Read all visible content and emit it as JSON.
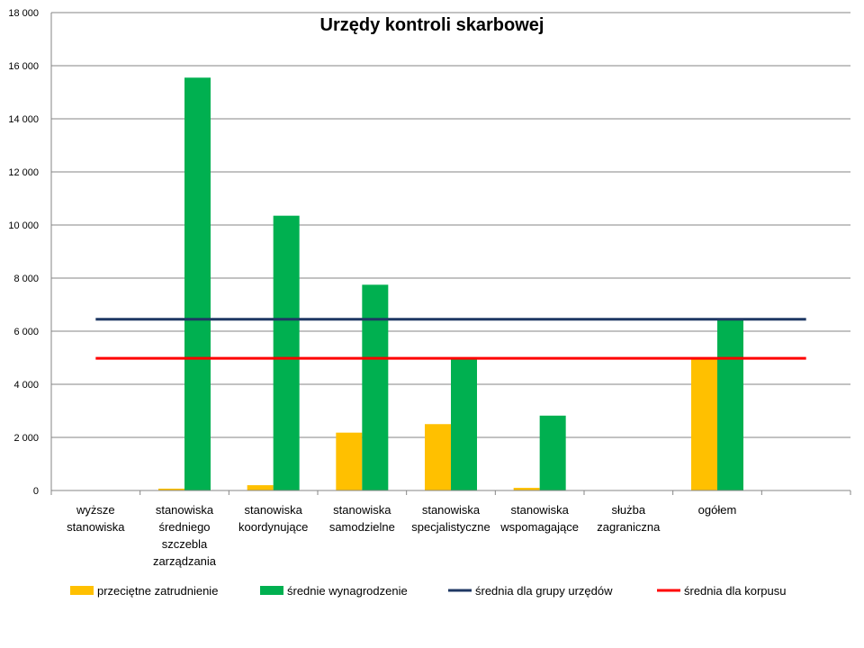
{
  "chart_data": {
    "type": "bar",
    "title": "Urzędy kontroli skarbowej",
    "xlabel": "",
    "ylabel": "",
    "ylim": [
      0,
      18000
    ],
    "yticks": [
      0,
      2000,
      4000,
      6000,
      8000,
      10000,
      12000,
      14000,
      16000,
      18000
    ],
    "ytick_labels": [
      "0",
      "2 000",
      "4 000",
      "6 000",
      "8 000",
      "10 000",
      "12 000",
      "14 000",
      "16 000",
      "18 000"
    ],
    "grid": true,
    "legend_position": "bottom",
    "categories": [
      [
        "wyższe",
        "stanowiska"
      ],
      [
        "stanowiska",
        "średniego",
        "szczebla",
        "zarządzania"
      ],
      [
        "stanowiska",
        "koordynujące"
      ],
      [
        "stanowiska",
        "samodzielne"
      ],
      [
        "stanowiska",
        "specjalistyczne"
      ],
      [
        "stanowiska",
        "wspomagające"
      ],
      [
        "służba",
        "zagraniczna"
      ],
      [
        "ogółem"
      ],
      [
        ""
      ]
    ],
    "series": [
      {
        "name": "przeciętne zatrudnienie",
        "type": "bar",
        "color": "#FFC000",
        "values": [
          0,
          70,
          200,
          2180,
          2500,
          100,
          0,
          5000,
          null
        ]
      },
      {
        "name": "średnie wynagrodzenie",
        "type": "bar",
        "color": "#00B050",
        "values": [
          0,
          15550,
          10350,
          7750,
          5000,
          2820,
          0,
          6450,
          null
        ]
      },
      {
        "name": "średnia dla grupy urzędów",
        "type": "line",
        "color": "#1F3864",
        "values": [
          6450,
          6450,
          6450,
          6450,
          6450,
          6450,
          6450,
          6450,
          6450
        ]
      },
      {
        "name": "średnia dla korpusu",
        "type": "line",
        "color": "#FF0000",
        "values": [
          4980,
          4980,
          4980,
          4980,
          4980,
          4980,
          4980,
          4980,
          4980
        ]
      }
    ]
  }
}
